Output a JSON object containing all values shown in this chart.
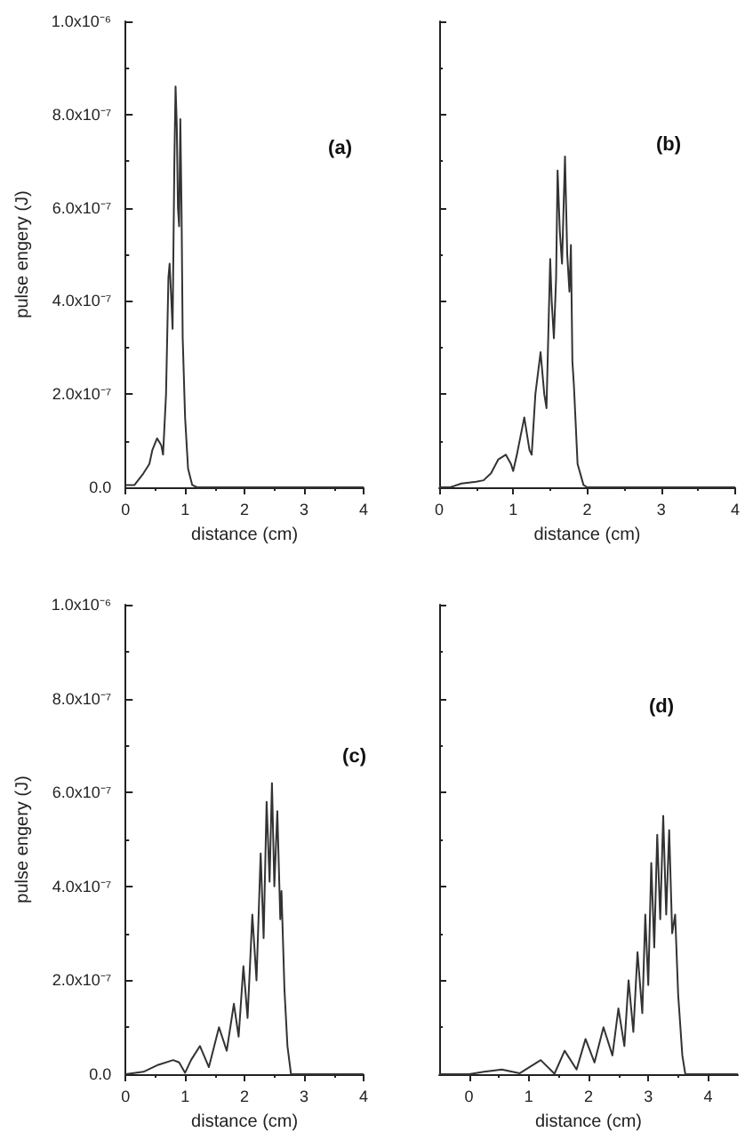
{
  "chart_data": [
    {
      "type": "line",
      "xlabel": "distance (cm)",
      "ylabel": "pulse engery (J)",
      "annotations": [
        "(a)"
      ],
      "marker": "none",
      "line_style": "solid",
      "xlim": [
        0,
        4
      ],
      "xticks": [
        0,
        1,
        2,
        3,
        4
      ],
      "ylim": [
        0,
        1e-06
      ],
      "yticks": [
        {
          "value": 0,
          "label": "0.0"
        },
        {
          "value": 2e-07,
          "label": "2.0x10⁻⁷"
        },
        {
          "value": 4e-07,
          "label": "4.0x10⁻⁷"
        },
        {
          "value": 6e-07,
          "label": "6.0x10⁻⁷"
        },
        {
          "value": 8e-07,
          "label": "8.0x10⁻⁷"
        },
        {
          "value": 1e-06,
          "label": "1.0x10⁻⁶"
        }
      ],
      "series": [
        {
          "color": "#333333",
          "x": [
            0,
            0.15,
            0.3,
            0.4,
            0.45,
            0.53,
            0.6,
            0.63,
            0.68,
            0.72,
            0.74,
            0.77,
            0.79,
            0.82,
            0.84,
            0.86,
            0.88,
            0.9,
            0.92,
            0.94,
            0.96,
            1.0,
            1.05,
            1.12,
            1.2,
            4
          ],
          "values": [
            5e-09,
            5e-09,
            3e-08,
            5e-08,
            8e-08,
            1.05e-07,
            9e-08,
            7e-08,
            2e-07,
            4.5e-07,
            4.8e-07,
            4e-07,
            3.4e-07,
            7e-07,
            8.6e-07,
            7.8e-07,
            6e-07,
            5.6e-07,
            7.9e-07,
            6e-07,
            3.2e-07,
            1.5e-07,
            4e-08,
            5e-09,
            0,
            0
          ]
        }
      ]
    },
    {
      "type": "line",
      "xlabel": "distance (cm)",
      "annotations": [
        "(b)"
      ],
      "marker": "none",
      "line_style": "solid",
      "tick_labels": "x",
      "xlim": [
        0,
        4
      ],
      "xticks": [
        0,
        1,
        2,
        3,
        4
      ],
      "ylim": [
        0,
        1e-06
      ],
      "yticks": [
        {
          "value": 0,
          "label": null
        },
        {
          "value": 2e-07,
          "label": null
        },
        {
          "value": 4e-07,
          "label": null
        },
        {
          "value": 6e-07,
          "label": null
        },
        {
          "value": 8e-07,
          "label": null
        },
        {
          "value": 1e-06,
          "label": null
        }
      ],
      "series": [
        {
          "color": "#333333",
          "x": [
            0,
            0.15,
            0.3,
            0.5,
            0.6,
            0.7,
            0.8,
            0.9,
            0.97,
            1.0,
            1.05,
            1.15,
            1.22,
            1.25,
            1.3,
            1.37,
            1.42,
            1.45,
            1.5,
            1.52,
            1.55,
            1.58,
            1.6,
            1.63,
            1.66,
            1.7,
            1.73,
            1.76,
            1.78,
            1.8,
            1.82,
            1.87,
            1.95,
            2.0,
            4
          ],
          "values": [
            0,
            0,
            8e-09,
            1.2e-08,
            1.5e-08,
            3e-08,
            6e-08,
            7e-08,
            5e-08,
            3.5e-08,
            7e-08,
            1.5e-07,
            8e-08,
            7e-08,
            2e-07,
            2.9e-07,
            2e-07,
            1.7e-07,
            4.9e-07,
            4e-07,
            3.2e-07,
            4.5e-07,
            6.8e-07,
            5.5e-07,
            4.8e-07,
            7.1e-07,
            5e-07,
            4.2e-07,
            5.2e-07,
            2.7e-07,
            2.2e-07,
            5e-08,
            5e-09,
            0,
            0
          ]
        }
      ]
    },
    {
      "type": "line",
      "xlabel": "distance (cm)",
      "ylabel": "pulse engery (J)",
      "annotations": [
        "(c)"
      ],
      "marker": "none",
      "line_style": "solid",
      "xlim": [
        0,
        4
      ],
      "xticks": [
        0,
        1,
        2,
        3,
        4
      ],
      "ylim": [
        0,
        1e-06
      ],
      "yticks": [
        {
          "value": 0,
          "label": "0.0"
        },
        {
          "value": 2e-07,
          "label": "2.0x10⁻⁷"
        },
        {
          "value": 4e-07,
          "label": "4.0x10⁻⁷"
        },
        {
          "value": 6e-07,
          "label": "6.0x10⁻⁷"
        },
        {
          "value": 8e-07,
          "label": "8.0x10⁻⁷"
        },
        {
          "value": 1e-06,
          "label": "1.0x10⁻⁶"
        }
      ],
      "series": [
        {
          "color": "#333333",
          "x": [
            0,
            0.3,
            0.55,
            0.8,
            0.9,
            1.0,
            1.1,
            1.25,
            1.4,
            1.57,
            1.7,
            1.82,
            1.9,
            1.98,
            2.05,
            2.13,
            2.2,
            2.27,
            2.32,
            2.37,
            2.42,
            2.46,
            2.5,
            2.55,
            2.6,
            2.62,
            2.67,
            2.72,
            2.78,
            4
          ],
          "values": [
            0,
            5e-09,
            2e-08,
            3e-08,
            2.5e-08,
            3e-09,
            3e-08,
            6e-08,
            1.5e-08,
            1e-07,
            5e-08,
            1.5e-07,
            8e-08,
            2.3e-07,
            1.2e-07,
            3.4e-07,
            2e-07,
            4.7e-07,
            2.9e-07,
            5.8e-07,
            4.1e-07,
            6.2e-07,
            4e-07,
            5.6e-07,
            3.3e-07,
            3.9e-07,
            1.8e-07,
            6e-08,
            0,
            0
          ]
        }
      ]
    },
    {
      "type": "line",
      "xlabel": "distance (cm)",
      "annotations": [
        "(d)"
      ],
      "marker": "none",
      "line_style": "solid",
      "tick_labels": "x",
      "xlim": [
        -0.5,
        4.5
      ],
      "xticks": [
        0,
        1,
        2,
        3,
        4
      ],
      "ylim": [
        0,
        1e-06
      ],
      "yticks": [
        {
          "value": 0,
          "label": null
        },
        {
          "value": 2e-07,
          "label": null
        },
        {
          "value": 4e-07,
          "label": null
        },
        {
          "value": 6e-07,
          "label": null
        },
        {
          "value": 8e-07,
          "label": null
        },
        {
          "value": 1e-06,
          "label": null
        }
      ],
      "series": [
        {
          "color": "#333333",
          "x": [
            -0.5,
            0,
            0.25,
            0.55,
            0.85,
            1.2,
            1.43,
            1.6,
            1.8,
            1.95,
            2.1,
            2.25,
            2.4,
            2.5,
            2.6,
            2.67,
            2.75,
            2.82,
            2.9,
            2.95,
            3.0,
            3.05,
            3.1,
            3.15,
            3.2,
            3.25,
            3.3,
            3.35,
            3.4,
            3.45,
            3.5,
            3.57,
            3.62,
            4.5
          ],
          "values": [
            0,
            0,
            5e-09,
            1e-08,
            2e-09,
            3e-08,
            1e-09,
            5e-08,
            1e-08,
            7.5e-08,
            2.5e-08,
            1e-07,
            4e-08,
            1.4e-07,
            6e-08,
            2e-07,
            9e-08,
            2.6e-07,
            1.3e-07,
            3.4e-07,
            1.9e-07,
            4.5e-07,
            2.7e-07,
            5.1e-07,
            3.3e-07,
            5.5e-07,
            3.4e-07,
            5.2e-07,
            3e-07,
            3.4e-07,
            1.7e-07,
            4e-08,
            0,
            0
          ]
        }
      ]
    }
  ]
}
